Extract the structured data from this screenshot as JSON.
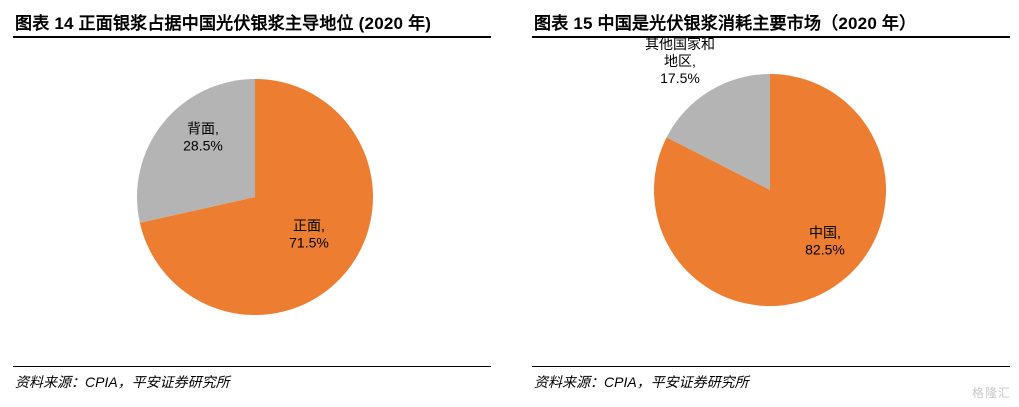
{
  "colors": {
    "orange": "#ED7D31",
    "gray": "#B4B4B4"
  },
  "watermark": "格隆汇",
  "chart_data": [
    {
      "type": "pie",
      "title": "图表 14   正面银浆占据中国光伏银浆主导地位 (2020 年)",
      "source": "资料来源：CPIA，平安证券研究所",
      "slices": [
        {
          "label": "正面",
          "value": 71.5,
          "value_text": "71.5%",
          "color": "#ED7D31"
        },
        {
          "label": "背面",
          "value": 28.5,
          "value_text": "28.5%",
          "color": "#B4B4B4"
        }
      ]
    },
    {
      "type": "pie",
      "title": "图表 15   中国是光伏银浆消耗主要市场（2020 年）",
      "source": "资料来源：CPIA，平安证券研究所",
      "slices": [
        {
          "label": "中国",
          "value": 82.5,
          "value_text": "82.5%",
          "color": "#ED7D31"
        },
        {
          "label": "其他国家和地区",
          "value": 17.5,
          "value_text": "17.5%",
          "color": "#B4B4B4"
        }
      ]
    }
  ]
}
